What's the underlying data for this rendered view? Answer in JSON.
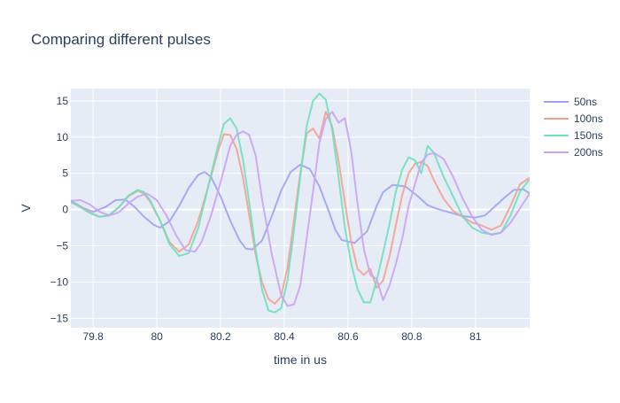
{
  "chart_data": {
    "type": "line",
    "title": "Comparing different pulses",
    "xlabel": "time in us",
    "ylabel": "V",
    "xlim": [
      79.73,
      81.17
    ],
    "ylim": [
      -16.3,
      16.7
    ],
    "x_ticks": [
      79.8,
      80,
      80.2,
      80.4,
      80.6,
      80.8,
      81
    ],
    "x_tick_labels": [
      "79.8",
      "80",
      "80.2",
      "80.4",
      "80.6",
      "80.8",
      "81"
    ],
    "y_ticks": [
      -15,
      -10,
      -5,
      0,
      5,
      10,
      15
    ],
    "y_tick_labels": [
      "−15",
      "−10",
      "−5",
      "0",
      "5",
      "10",
      "15"
    ],
    "grid": true,
    "legend_position": "top-right",
    "series": [
      {
        "name": "50ns",
        "color": "#9ea3f5",
        "x": [
          79.73,
          79.77,
          79.8,
          79.84,
          79.87,
          79.9,
          79.93,
          79.96,
          79.99,
          80.01,
          80.04,
          80.07,
          80.1,
          80.13,
          80.15,
          80.17,
          80.2,
          80.23,
          80.26,
          80.28,
          80.3,
          80.33,
          80.36,
          80.39,
          80.42,
          80.45,
          80.48,
          80.51,
          80.54,
          80.56,
          80.58,
          80.62,
          80.66,
          80.69,
          80.71,
          80.74,
          80.78,
          80.82,
          80.85,
          80.88,
          80.92,
          80.96,
          81.0,
          81.03,
          81.06,
          81.09,
          81.12,
          81.15,
          81.17
        ],
        "y": [
          1.2,
          0.2,
          -0.3,
          0.4,
          1.3,
          1.4,
          0.4,
          -1.0,
          -2.1,
          -2.5,
          -1.6,
          0.5,
          3.0,
          4.8,
          5.2,
          4.5,
          1.8,
          -1.5,
          -4.3,
          -5.4,
          -5.5,
          -4.3,
          -1.0,
          2.6,
          5.2,
          6.2,
          5.6,
          3.2,
          -0.3,
          -2.8,
          -4.2,
          -4.6,
          -3.0,
          0.5,
          2.4,
          3.4,
          3.2,
          1.8,
          0.6,
          0.1,
          -0.4,
          -0.9,
          -1.1,
          -0.8,
          0.4,
          1.6,
          2.7,
          2.8,
          2.2
        ]
      },
      {
        "name": "100ns",
        "color": "#f4a290",
        "x": [
          79.73,
          79.76,
          79.79,
          79.82,
          79.85,
          79.88,
          79.91,
          79.94,
          79.96,
          79.98,
          80.01,
          80.04,
          80.07,
          80.1,
          80.13,
          80.16,
          80.19,
          80.21,
          80.23,
          80.25,
          80.27,
          80.29,
          80.31,
          80.33,
          80.35,
          80.37,
          80.39,
          80.41,
          80.43,
          80.45,
          80.47,
          80.49,
          80.51,
          80.53,
          80.55,
          80.57,
          80.59,
          80.61,
          80.63,
          80.65,
          80.67,
          80.69,
          80.71,
          80.73,
          80.75,
          80.77,
          80.79,
          80.81,
          80.83,
          80.85,
          80.87,
          80.9,
          80.93,
          80.96,
          80.99,
          81.02,
          81.05,
          81.08,
          81.11,
          81.14,
          81.17
        ],
        "y": [
          1.0,
          0.4,
          -0.4,
          -1.0,
          -0.8,
          0.3,
          1.8,
          2.6,
          2.2,
          1.0,
          -1.5,
          -4.5,
          -5.8,
          -4.8,
          -1.5,
          3.0,
          7.8,
          10.4,
          10.3,
          8.4,
          4.5,
          -0.8,
          -6.2,
          -10.0,
          -12.3,
          -13.0,
          -12.0,
          -8.0,
          -1.5,
          5.0,
          10.5,
          11.2,
          9.8,
          13.5,
          11.5,
          6.8,
          1.0,
          -4.5,
          -8.2,
          -9.0,
          -8.2,
          -10.8,
          -9.8,
          -6.5,
          -2.2,
          2.0,
          5.0,
          6.3,
          6.6,
          6.0,
          4.0,
          1.5,
          -0.2,
          -1.0,
          -1.8,
          -2.2,
          -2.8,
          -2.2,
          0.5,
          3.5,
          4.4
        ]
      },
      {
        "name": "150ns",
        "color": "#6ee0be",
        "x": [
          79.73,
          79.76,
          79.79,
          79.82,
          79.85,
          79.88,
          79.91,
          79.94,
          79.96,
          79.98,
          80.01,
          80.04,
          80.07,
          80.1,
          80.13,
          80.16,
          80.19,
          80.21,
          80.23,
          80.25,
          80.27,
          80.29,
          80.31,
          80.33,
          80.35,
          80.37,
          80.39,
          80.41,
          80.43,
          80.45,
          80.47,
          80.49,
          80.51,
          80.53,
          80.55,
          80.57,
          80.59,
          80.61,
          80.63,
          80.65,
          80.67,
          80.69,
          80.71,
          80.73,
          80.75,
          80.77,
          80.79,
          80.81,
          80.83,
          80.85,
          80.87,
          80.9,
          80.93,
          80.96,
          80.99,
          81.02,
          81.05,
          81.08,
          81.11,
          81.14,
          81.17
        ],
        "y": [
          1.1,
          0.3,
          -0.5,
          -1.0,
          -0.8,
          0.3,
          1.9,
          2.7,
          2.4,
          1.2,
          -1.5,
          -4.8,
          -6.4,
          -6.0,
          -2.5,
          3.0,
          8.5,
          11.8,
          12.6,
          11.2,
          7.0,
          1.0,
          -5.5,
          -11.0,
          -13.9,
          -14.2,
          -13.6,
          -9.8,
          -3.0,
          4.5,
          11.5,
          15.0,
          16.0,
          15.2,
          11.0,
          4.5,
          -2.5,
          -7.5,
          -11.0,
          -12.8,
          -12.8,
          -9.8,
          -6.0,
          -2.0,
          2.5,
          5.5,
          7.2,
          6.8,
          5.0,
          8.8,
          7.8,
          4.5,
          1.8,
          -1.0,
          -2.5,
          -3.2,
          -3.4,
          -3.2,
          -0.8,
          2.5,
          4.2
        ]
      },
      {
        "name": "200ns",
        "color": "#c9a3f7",
        "x": [
          79.73,
          79.76,
          79.79,
          79.82,
          79.85,
          79.88,
          79.91,
          79.94,
          79.97,
          80.0,
          80.03,
          80.06,
          80.09,
          80.12,
          80.14,
          80.17,
          80.2,
          80.23,
          80.25,
          80.27,
          80.29,
          80.31,
          80.33,
          80.36,
          80.39,
          80.41,
          80.43,
          80.45,
          80.47,
          80.49,
          80.51,
          80.53,
          80.55,
          80.57,
          80.59,
          80.61,
          80.63,
          80.65,
          80.67,
          80.69,
          80.71,
          80.73,
          80.75,
          80.77,
          80.79,
          80.81,
          80.83,
          80.85,
          80.87,
          80.9,
          80.93,
          80.96,
          80.99,
          81.02,
          81.05,
          81.08,
          81.11,
          81.14,
          81.17
        ],
        "y": [
          1.2,
          1.3,
          0.7,
          -0.3,
          -0.8,
          -0.4,
          0.8,
          1.8,
          2.2,
          1.3,
          -0.8,
          -3.5,
          -5.6,
          -5.8,
          -4.5,
          -0.8,
          3.8,
          8.8,
          10.3,
          10.8,
          10.3,
          7.5,
          1.5,
          -6.0,
          -11.8,
          -13.3,
          -13.1,
          -10.5,
          -4.0,
          2.5,
          9.2,
          12.5,
          13.5,
          12.0,
          12.6,
          8.0,
          0.8,
          -5.5,
          -9.0,
          -9.6,
          -12.5,
          -10.5,
          -7.5,
          -4.0,
          0.5,
          3.5,
          6.5,
          7.6,
          7.8,
          7.0,
          4.5,
          1.5,
          -1.0,
          -2.8,
          -3.5,
          -3.2,
          -1.8,
          0.2,
          2.2
        ]
      }
    ]
  }
}
